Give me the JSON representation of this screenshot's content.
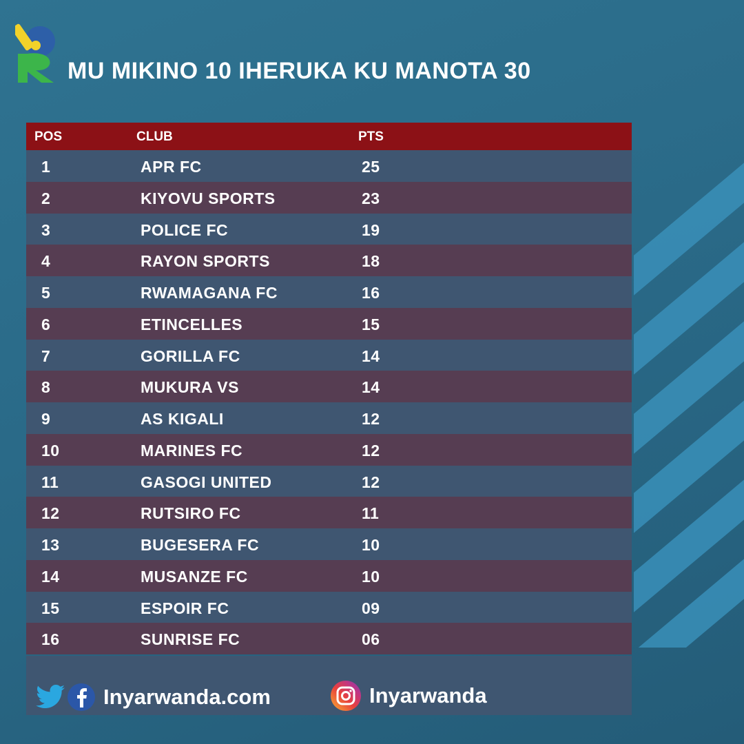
{
  "title": "MU MIKINO 10 IHERUKA KU MANOTA 30",
  "table": {
    "headers": {
      "pos": "POS",
      "club": "CLUB",
      "pts": "PTS"
    },
    "rows": [
      {
        "pos": "1",
        "club": "APR FC",
        "pts": "25"
      },
      {
        "pos": "2",
        "club": "KIYOVU SPORTS",
        "pts": "23"
      },
      {
        "pos": "3",
        "club": "POLICE FC",
        "pts": "19"
      },
      {
        "pos": "4",
        "club": "RAYON SPORTS",
        "pts": "18"
      },
      {
        "pos": "5",
        "club": "RWAMAGANA FC",
        "pts": "16"
      },
      {
        "pos": "6",
        "club": "ETINCELLES",
        "pts": "15"
      },
      {
        "pos": "7",
        "club": "GORILLA FC",
        "pts": "14"
      },
      {
        "pos": "8",
        "club": "MUKURA VS",
        "pts": "14"
      },
      {
        "pos": "9",
        "club": "AS KIGALI",
        "pts": "12"
      },
      {
        "pos": "10",
        "club": "MARINES FC",
        "pts": "12"
      },
      {
        "pos": "11",
        "club": "GASOGI UNITED",
        "pts": "12"
      },
      {
        "pos": "12",
        "club": "RUTSIRO FC",
        "pts": "11"
      },
      {
        "pos": "13",
        "club": "BUGESERA FC",
        "pts": "10"
      },
      {
        "pos": "14",
        "club": "MUSANZE FC",
        "pts": "10"
      },
      {
        "pos": "15",
        "club": "ESPOIR FC",
        "pts": "09"
      },
      {
        "pos": "16",
        "club": "SUNRISE FC",
        "pts": "06"
      }
    ]
  },
  "footer": {
    "web_label": "Inyarwanda.com",
    "instagram_label": "Inyarwanda",
    "icons": [
      "twitter-icon",
      "facebook-icon",
      "instagram-icon"
    ]
  },
  "colors": {
    "header_red": "#8c1116",
    "row_blue": "#3f5671",
    "row_maroon": "#563d52",
    "background": "#2a6a88"
  }
}
